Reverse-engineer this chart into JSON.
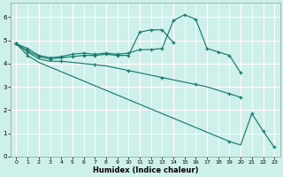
{
  "xlabel": "Humidex (Indice chaleur)",
  "bg_color": "#cef0ea",
  "line_color": "#1a7a6e",
  "grid_color": "#ffffff",
  "xlim": [
    -0.5,
    23.5
  ],
  "ylim": [
    0,
    6.6
  ],
  "yticks": [
    0,
    1,
    2,
    3,
    4,
    5,
    6
  ],
  "xticks": [
    0,
    1,
    2,
    3,
    4,
    5,
    6,
    7,
    8,
    9,
    10,
    11,
    12,
    13,
    14,
    15,
    16,
    17,
    18,
    19,
    20,
    21,
    22,
    23
  ],
  "lines": [
    {
      "x": [
        0,
        1,
        2,
        3,
        4,
        5,
        6,
        7,
        8,
        9,
        10,
        11,
        12,
        13,
        14,
        15,
        16,
        17,
        18,
        19,
        20
      ],
      "y": [
        4.85,
        4.65,
        4.35,
        4.25,
        4.3,
        4.4,
        4.45,
        4.4,
        4.45,
        4.4,
        4.45,
        4.6,
        4.6,
        4.65,
        5.85,
        6.1,
        5.9,
        4.65,
        4.5,
        4.35,
        3.6
      ],
      "mx": [
        0,
        1,
        2,
        3,
        4,
        5,
        6,
        7,
        8,
        9,
        10,
        11,
        12,
        13,
        14,
        15,
        16,
        17,
        18,
        19,
        20
      ],
      "my": [
        4.85,
        4.65,
        4.35,
        4.25,
        4.3,
        4.4,
        4.45,
        4.4,
        4.45,
        4.4,
        4.45,
        4.6,
        4.6,
        4.65,
        5.85,
        6.1,
        5.9,
        4.65,
        4.5,
        4.35,
        3.6
      ]
    },
    {
      "x": [
        0,
        1,
        2,
        3,
        4,
        5,
        6,
        7,
        8,
        9,
        10,
        11,
        12,
        13,
        14
      ],
      "y": [
        4.85,
        4.55,
        4.3,
        4.2,
        4.25,
        4.3,
        4.35,
        4.35,
        4.4,
        4.35,
        4.35,
        5.35,
        5.45,
        5.45,
        4.9
      ],
      "mx": [
        0,
        1,
        2,
        3,
        4,
        5,
        6,
        7,
        8,
        9,
        10,
        11,
        12,
        13,
        14
      ],
      "my": [
        4.85,
        4.55,
        4.3,
        4.2,
        4.25,
        4.3,
        4.35,
        4.35,
        4.4,
        4.35,
        4.35,
        5.35,
        5.45,
        5.45,
        4.9
      ]
    },
    {
      "x": [
        0,
        1,
        2,
        3,
        4,
        5,
        6,
        7,
        8,
        9,
        10,
        11,
        12,
        13,
        14,
        15,
        16,
        17,
        18,
        19,
        20
      ],
      "y": [
        4.85,
        4.5,
        4.2,
        4.1,
        4.1,
        4.05,
        4.0,
        3.95,
        3.9,
        3.8,
        3.7,
        3.6,
        3.5,
        3.4,
        3.3,
        3.2,
        3.1,
        3.0,
        2.85,
        2.7,
        2.55
      ],
      "mx": [
        0,
        1,
        4,
        7,
        10,
        13,
        16,
        19,
        20
      ],
      "my": [
        4.85,
        4.5,
        4.1,
        3.95,
        3.7,
        3.4,
        3.1,
        2.7,
        2.55
      ]
    },
    {
      "x": [
        0,
        1,
        2,
        3,
        4,
        5,
        6,
        7,
        8,
        9,
        10,
        11,
        12,
        13,
        14,
        15,
        16,
        17,
        18,
        19,
        20,
        21,
        22,
        23
      ],
      "y": [
        4.85,
        4.35,
        4.05,
        3.85,
        3.65,
        3.45,
        3.25,
        3.05,
        2.85,
        2.65,
        2.45,
        2.25,
        2.05,
        1.85,
        1.65,
        1.45,
        1.25,
        1.05,
        0.85,
        0.65,
        0.5,
        1.85,
        1.1,
        0.4
      ],
      "mx": [
        0,
        1,
        19,
        21,
        22,
        23
      ],
      "my": [
        4.85,
        4.35,
        0.65,
        1.85,
        1.1,
        0.4
      ]
    }
  ]
}
